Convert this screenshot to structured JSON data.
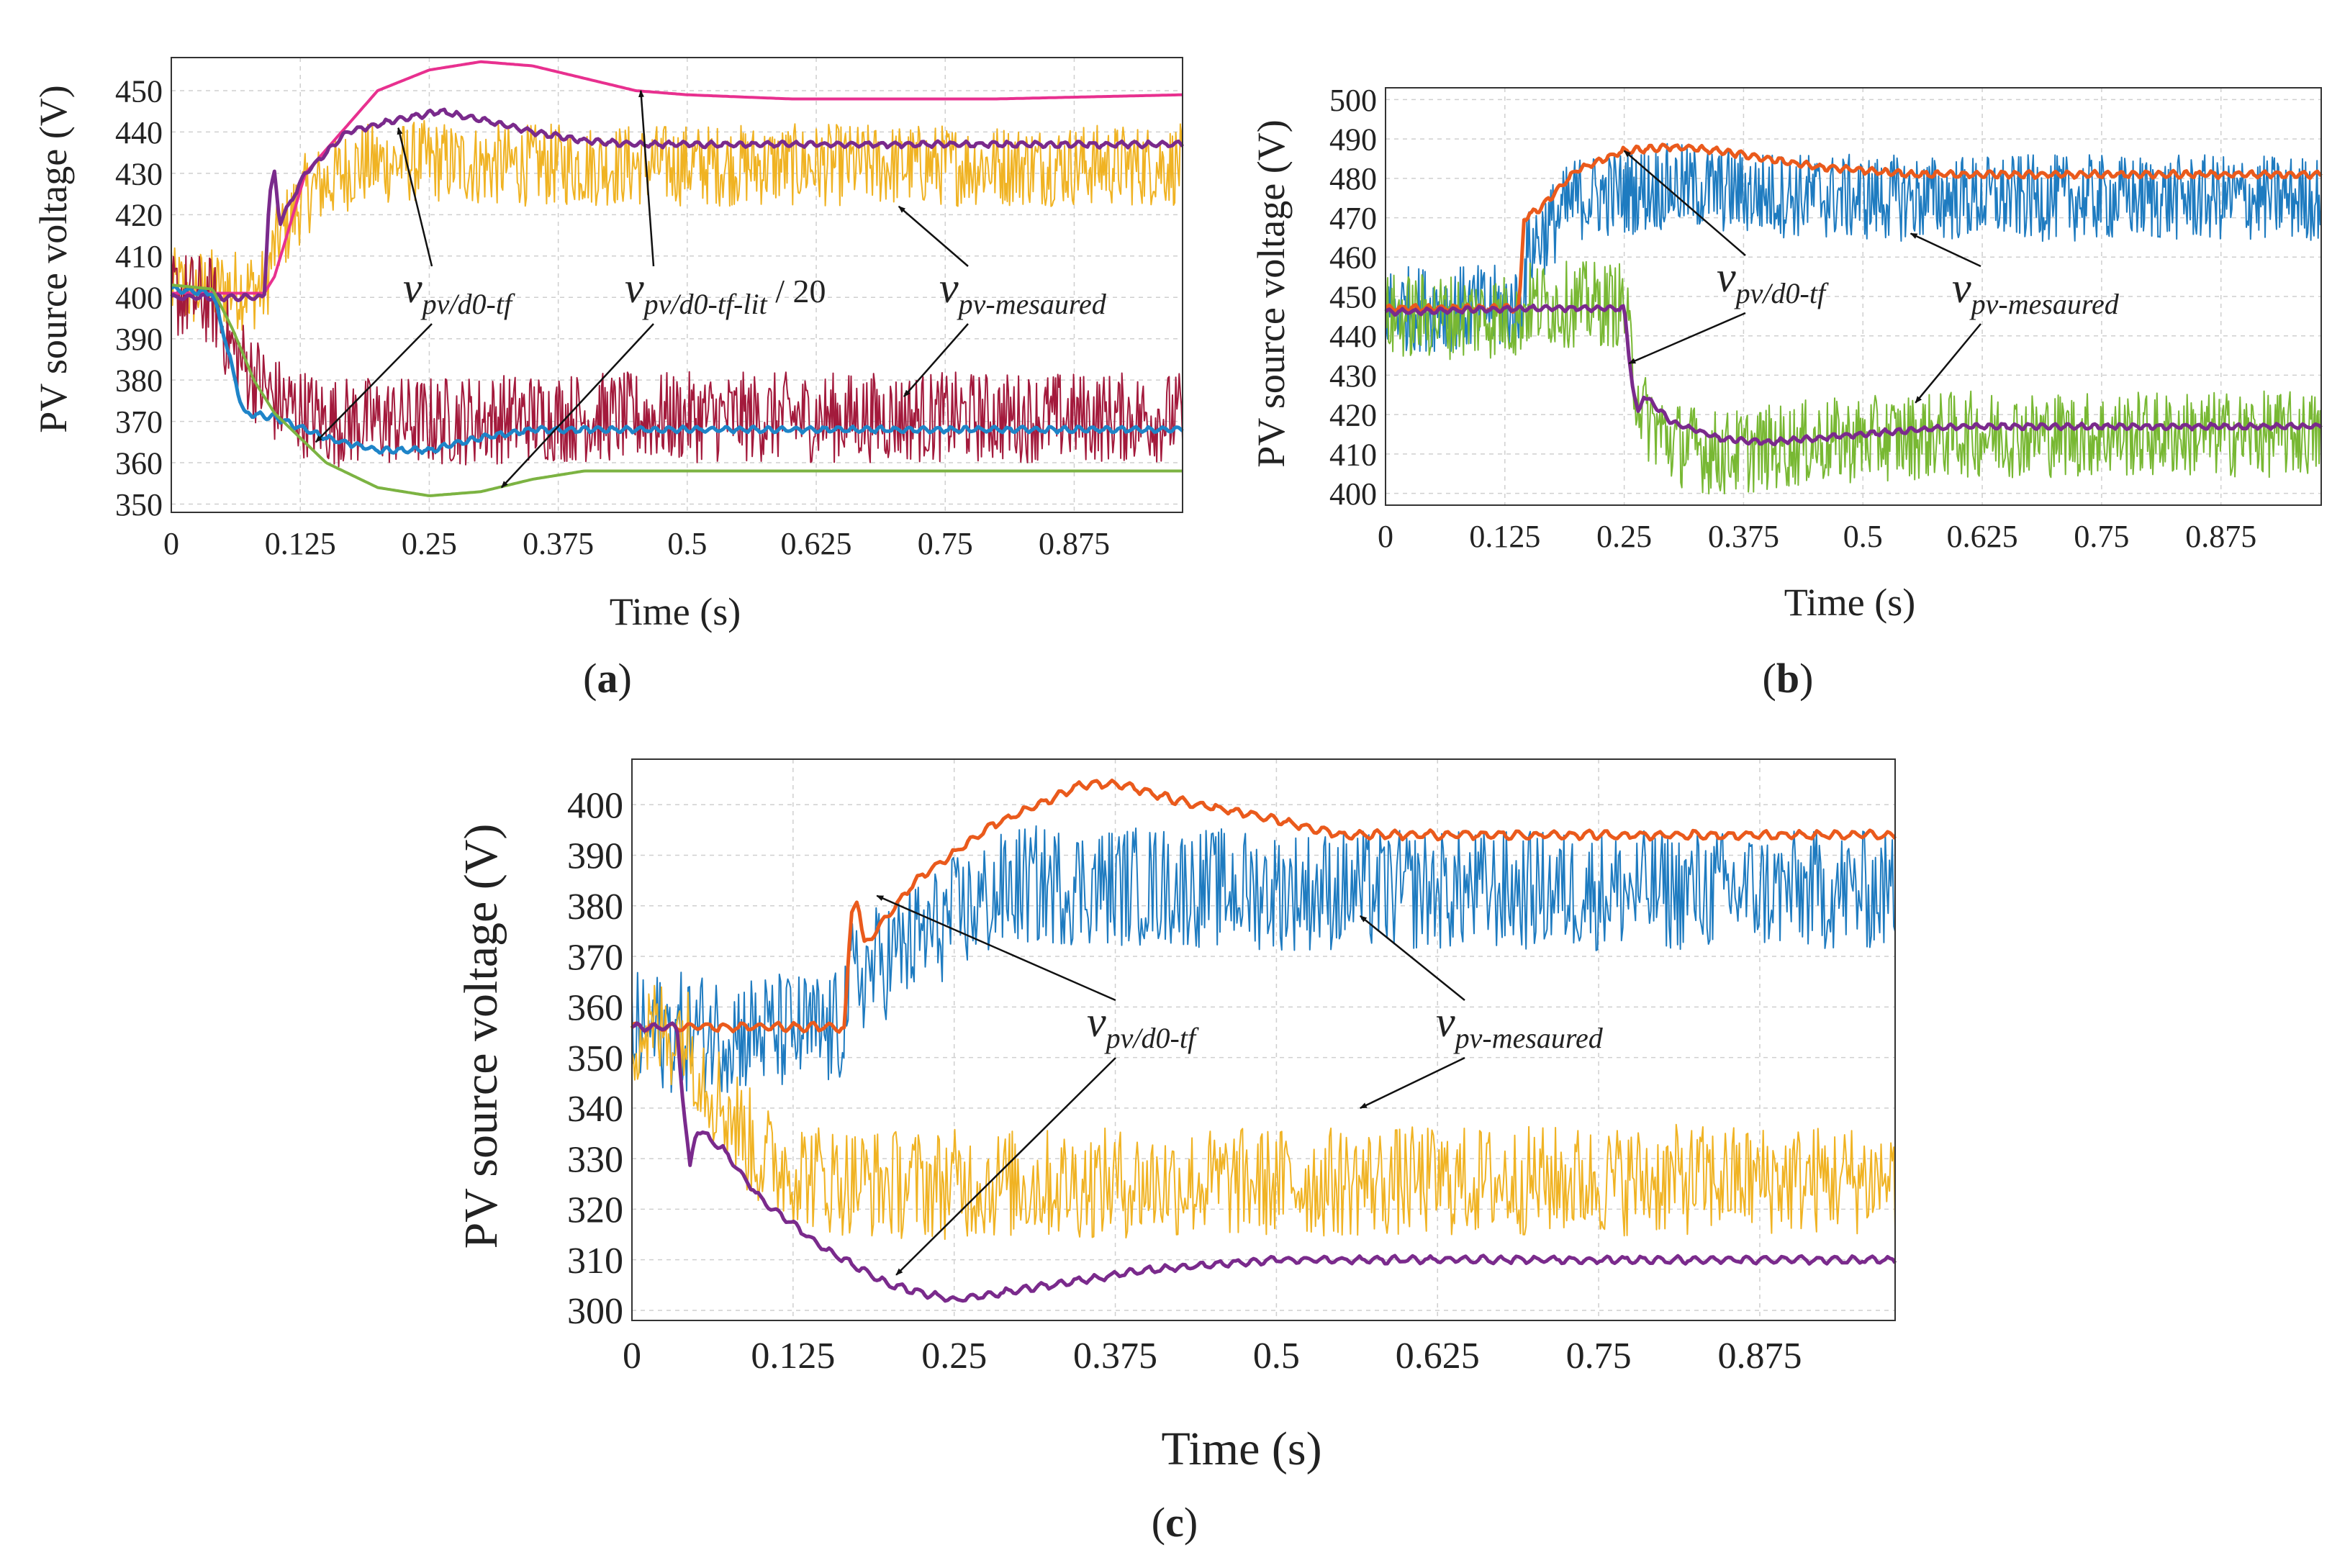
{
  "figure": {
    "panels": [
      "a",
      "b",
      "c"
    ]
  },
  "chart_data": [
    {
      "id": "a",
      "type": "line",
      "caption_open": "(",
      "caption_letter": "a",
      "caption_close": ")",
      "xlabel": "Time (s)",
      "ylabel": "PV source voltage (V)",
      "xlim": [
        0,
        0.98
      ],
      "ylim": [
        348,
        458
      ],
      "grid": true,
      "xticks": [
        0,
        0.125,
        0.25,
        0.375,
        0.5,
        0.625,
        0.75,
        0.875
      ],
      "xtick_labels": [
        "0",
        "0.125",
        "0.25",
        "0.375",
        "0.5",
        "0.625",
        "0.75",
        "0.875"
      ],
      "yticks": [
        350,
        360,
        370,
        380,
        390,
        400,
        410,
        420,
        430,
        440,
        450
      ],
      "ytick_labels": [
        "350",
        "360",
        "370",
        "380",
        "390",
        "400",
        "410",
        "420",
        "430",
        "440",
        "450"
      ],
      "series": [
        {
          "name": "measured (upper)",
          "color": "#f0b323",
          "noise": 10,
          "width": 2,
          "x": [
            0,
            0.09,
            0.1,
            0.13,
            0.18,
            0.25,
            0.3,
            0.4,
            0.6,
            0.98
          ],
          "y": [
            402,
            402,
            412,
            425,
            432,
            433,
            432,
            432,
            432,
            432
          ]
        },
        {
          "name": "measured (lower)",
          "color": "#a31a3c",
          "noise": 11,
          "width": 2,
          "x": [
            0,
            0.04,
            0.06,
            0.1,
            0.15,
            0.25,
            0.35,
            0.5,
            0.98
          ],
          "y": [
            401,
            399,
            387,
            375,
            370,
            370,
            371,
            371,
            371
          ]
        },
        {
          "name": "pv/d0-tf-lit / 20 (upper)",
          "color": "#e8308f",
          "noise": 0,
          "width": 4,
          "x": [
            0,
            0.09,
            0.1,
            0.13,
            0.2,
            0.25,
            0.3,
            0.35,
            0.4,
            0.45,
            0.5,
            0.6,
            0.7,
            0.8,
            0.98
          ],
          "y": [
            401,
            401,
            405,
            430,
            450,
            455,
            457,
            456,
            453,
            450,
            449,
            448,
            448,
            448,
            449
          ]
        },
        {
          "name": "pv/d0-tf (upper)",
          "color": "#7a2a8c",
          "noise": 0.6,
          "width": 5,
          "x": [
            0,
            0.09,
            0.095,
            0.1,
            0.105,
            0.13,
            0.17,
            0.22,
            0.26,
            0.3,
            0.35,
            0.4,
            0.45,
            0.5,
            0.98
          ],
          "y": [
            400,
            400,
            425,
            430,
            418,
            430,
            440,
            443,
            445,
            443,
            440,
            438,
            437,
            437,
            437
          ]
        },
        {
          "name": "pv/d0-tf (lower)",
          "color": "#1e84c8",
          "noise": 0.6,
          "width": 5,
          "x": [
            0,
            0.04,
            0.05,
            0.06,
            0.07,
            0.1,
            0.15,
            0.2,
            0.25,
            0.3,
            0.35,
            0.4,
            0.5,
            0.98
          ],
          "y": [
            402,
            401,
            392,
            382,
            372,
            371,
            366,
            363,
            363,
            366,
            368,
            368,
            368,
            368
          ]
        },
        {
          "name": "pv/d0-tf-lit / 20 (lower)",
          "color": "#7cb342",
          "noise": 0,
          "width": 4,
          "x": [
            0,
            0.04,
            0.06,
            0.08,
            0.1,
            0.15,
            0.2,
            0.25,
            0.3,
            0.35,
            0.4,
            0.45,
            0.5,
            0.6,
            0.98
          ],
          "y": [
            403,
            402,
            392,
            380,
            372,
            360,
            354,
            352,
            353,
            356,
            358,
            358,
            358,
            358,
            358
          ]
        }
      ],
      "annotations": [
        {
          "sym": "v",
          "sub": "pv/d0-tf",
          "suffix": "",
          "arrows": [
            [
              0.22,
              441
            ],
            [
              0.14,
              365
            ]
          ]
        },
        {
          "sym": "v",
          "sub": "pv/d0-tf-lit",
          "suffix": " / 20",
          "arrows": [
            [
              0.455,
              450
            ],
            [
              0.32,
              354
            ]
          ]
        },
        {
          "sym": "v",
          "sub": "pv-mesaured",
          "suffix": "",
          "arrows": [
            [
              0.705,
              422
            ],
            [
              0.71,
              376
            ]
          ]
        }
      ]
    },
    {
      "id": "b",
      "type": "line",
      "caption_open": "(",
      "caption_letter": "b",
      "caption_close": ")",
      "xlabel": "Time (s)",
      "ylabel": "PV source voltage (V)",
      "xlim": [
        0,
        0.98
      ],
      "ylim": [
        397,
        503
      ],
      "grid": true,
      "xticks": [
        0,
        0.125,
        0.25,
        0.375,
        0.5,
        0.625,
        0.75,
        0.875
      ],
      "xtick_labels": [
        "0",
        "0.125",
        "0.25",
        "0.375",
        "0.5",
        "0.625",
        "0.75",
        "0.875"
      ],
      "yticks": [
        400,
        410,
        420,
        430,
        440,
        450,
        460,
        470,
        480,
        490,
        500
      ],
      "ytick_labels": [
        "400",
        "410",
        "420",
        "430",
        "440",
        "450",
        "460",
        "470",
        "480",
        "490",
        "500"
      ],
      "series": [
        {
          "name": "measured (upper)",
          "color": "#1e7bc0",
          "noise": 11,
          "width": 2,
          "x": [
            0,
            0.14,
            0.15,
            0.2,
            0.3,
            0.4,
            0.5,
            0.98
          ],
          "y": [
            447,
            447,
            462,
            475,
            478,
            476,
            475,
            475
          ]
        },
        {
          "name": "measured (lower)",
          "color": "#78b833",
          "noise": 11,
          "width": 2,
          "x": [
            0,
            0.14,
            0.15,
            0.25,
            0.26,
            0.27,
            0.3,
            0.35,
            0.45,
            0.6,
            0.98
          ],
          "y": [
            445,
            445,
            448,
            448,
            430,
            420,
            413,
            410,
            413,
            415,
            415
          ]
        },
        {
          "name": "pv/d0-tf (upper)",
          "color": "#ea5a1c",
          "noise": 0.7,
          "width": 5,
          "x": [
            0,
            0.14,
            0.145,
            0.16,
            0.2,
            0.25,
            0.3,
            0.35,
            0.45,
            0.55,
            0.98
          ],
          "y": [
            447,
            447,
            470,
            472,
            482,
            487,
            488,
            487,
            483,
            481,
            481
          ]
        },
        {
          "name": "pv/d0-tf (lower)",
          "color": "#7a2a8c",
          "noise": 0.6,
          "width": 5,
          "x": [
            0,
            0.15,
            0.25,
            0.255,
            0.26,
            0.265,
            0.27,
            0.3,
            0.35,
            0.4,
            0.5,
            0.6,
            0.98
          ],
          "y": [
            446,
            447,
            447,
            435,
            425,
            420,
            425,
            418,
            414,
            413,
            415,
            417,
            417
          ]
        }
      ],
      "annotations": [
        {
          "sym": "v",
          "sub": "pv/d0-tf",
          "suffix": "",
          "arrows": [
            [
              0.25,
              487
            ],
            [
              0.255,
              433
            ]
          ]
        },
        {
          "sym": "v",
          "sub": "pv-mesaured",
          "suffix": "",
          "arrows": [
            [
              0.55,
              466
            ],
            [
              0.555,
              423
            ]
          ]
        }
      ]
    },
    {
      "id": "c",
      "type": "line",
      "caption_open": "(",
      "caption_letter": "c",
      "caption_close": ")",
      "xlabel": "Time (s)",
      "ylabel": "PV source voltage (V)",
      "xlim": [
        0,
        0.98
      ],
      "ylim": [
        298,
        409
      ],
      "grid": true,
      "xticks": [
        0,
        0.125,
        0.25,
        0.375,
        0.5,
        0.625,
        0.75,
        0.875
      ],
      "xtick_labels": [
        "0",
        "0.125",
        "0.25",
        "0.375",
        "0.5",
        "0.625",
        "0.75",
        "0.875"
      ],
      "yticks": [
        300,
        310,
        320,
        330,
        340,
        350,
        360,
        370,
        380,
        390,
        400
      ],
      "ytick_labels": [
        "300",
        "310",
        "320",
        "330",
        "340",
        "350",
        "360",
        "370",
        "380",
        "390",
        "400"
      ],
      "series": [
        {
          "name": "measured (upper)",
          "color": "#1e7bc0",
          "noise": 12,
          "width": 2,
          "x": [
            0,
            0.16,
            0.17,
            0.25,
            0.3,
            0.4,
            0.5,
            0.98
          ],
          "y": [
            355,
            355,
            365,
            378,
            384,
            384,
            383,
            383
          ]
        },
        {
          "name": "measured (lower)",
          "color": "#f0b323",
          "noise": 11,
          "width": 2,
          "x": [
            0,
            0.04,
            0.06,
            0.1,
            0.15,
            0.2,
            0.3,
            0.98
          ],
          "y": [
            355,
            355,
            345,
            330,
            326,
            325,
            325,
            326
          ]
        },
        {
          "name": "pv/d0-tf (upper)",
          "color": "#ea5a1c",
          "noise": 0.7,
          "width": 5,
          "x": [
            0,
            0.165,
            0.17,
            0.175,
            0.18,
            0.22,
            0.28,
            0.35,
            0.38,
            0.42,
            0.5,
            0.55,
            0.98
          ],
          "y": [
            356,
            356,
            378,
            382,
            372,
            385,
            396,
            404,
            404,
            401,
            397,
            394,
            394
          ]
        },
        {
          "name": "pv/d0-tf (lower)",
          "color": "#7a2a8c",
          "noise": 0.6,
          "width": 5,
          "x": [
            0,
            0.035,
            0.04,
            0.045,
            0.05,
            0.07,
            0.1,
            0.15,
            0.2,
            0.25,
            0.3,
            0.4,
            0.5,
            0.98
          ],
          "y": [
            356,
            356,
            340,
            328,
            336,
            332,
            322,
            312,
            305,
            302,
            304,
            308,
            310,
            310
          ]
        }
      ],
      "annotations": [
        {
          "sym": "v",
          "sub": "pv/d0-tf",
          "suffix": "",
          "arrows": [
            [
              0.19,
              382
            ],
            [
              0.205,
              307
            ]
          ]
        },
        {
          "sym": "v",
          "sub": "pv-mesaured",
          "suffix": "",
          "arrows": [
            [
              0.565,
              378
            ],
            [
              0.565,
              340
            ]
          ]
        }
      ]
    }
  ]
}
